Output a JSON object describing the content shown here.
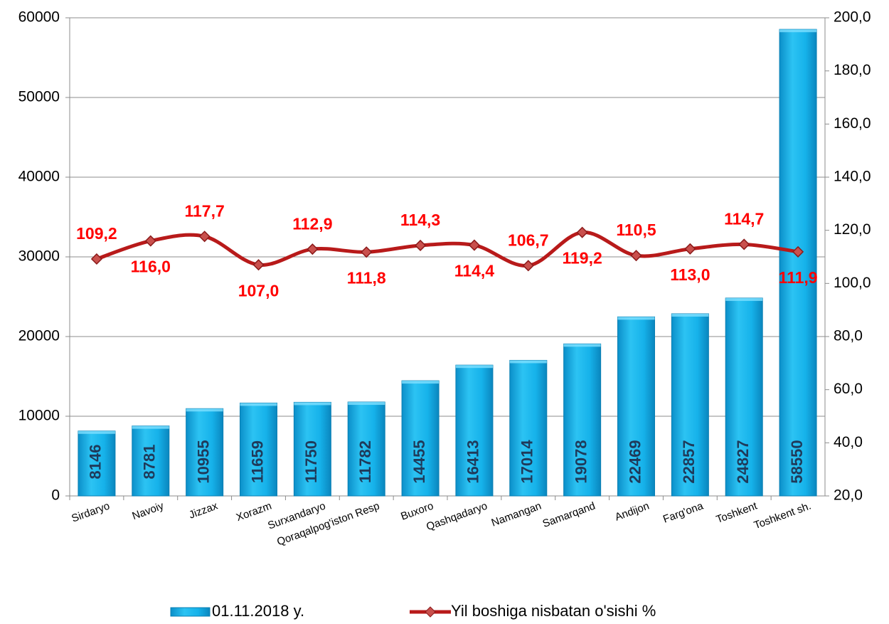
{
  "chart_data": {
    "type": "bar_line",
    "categories": [
      "Sirdaryo",
      "Navoiy",
      "Jizzax",
      "Xorazm",
      "Surxandaryo",
      "Qoraqalpog'iston Resp",
      "Buxoro",
      "Qashqadaryo",
      "Namangan",
      "Samarqand",
      "Andijon",
      "Farg'ona",
      "Toshkent",
      "Toshkent sh."
    ],
    "series": [
      {
        "name": "01.11.2018 y.",
        "type": "bar",
        "color": "#1fb8ec",
        "values": [
          8146,
          8781,
          10955,
          11659,
          11750,
          11782,
          14455,
          16413,
          17014,
          19078,
          22469,
          22857,
          24827,
          58550
        ]
      },
      {
        "name": "Yil boshiga nisbatan o'sishi %",
        "type": "line",
        "axis": "y2",
        "color": "#b81a1a",
        "values": [
          109.2,
          116.0,
          117.7,
          107.0,
          112.9,
          111.8,
          114.3,
          114.4,
          106.7,
          119.2,
          110.5,
          113.0,
          114.7,
          111.9
        ],
        "value_labels": [
          "109,2",
          "116,0",
          "117,7",
          "107,0",
          "112,9",
          "111,8",
          "114,3",
          "114,4",
          "106,7",
          "119,2",
          "110,5",
          "113,0",
          "114,7",
          "111,9"
        ]
      }
    ],
    "ylim": [
      0,
      60000
    ],
    "yticks": [
      0,
      10000,
      20000,
      30000,
      40000,
      50000,
      60000
    ],
    "y2lim": [
      20,
      200
    ],
    "y2ticks": [
      {
        "value": 20,
        "label": "20,0"
      },
      {
        "value": 40,
        "label": "40,0"
      },
      {
        "value": 60,
        "label": "60,0"
      },
      {
        "value": 80,
        "label": "80,0"
      },
      {
        "value": 100,
        "label": "100,0"
      },
      {
        "value": 120,
        "label": "120,0"
      },
      {
        "value": 140,
        "label": "140,0"
      },
      {
        "value": 160,
        "label": "160,0"
      },
      {
        "value": 180,
        "label": "180,0"
      },
      {
        "value": 200,
        "label": "200,0"
      }
    ],
    "grid": true,
    "legend": "bottom"
  }
}
